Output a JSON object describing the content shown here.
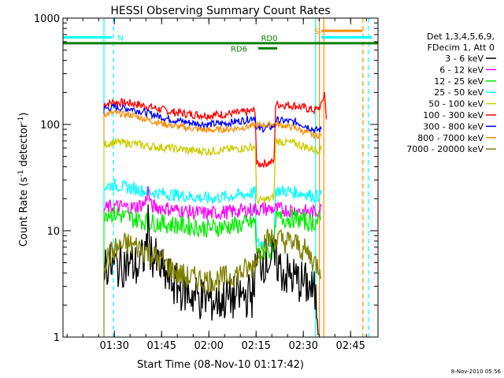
{
  "chart_data": {
    "type": "line",
    "title": "HESSI Observing Summary Count Rates",
    "xlabel": "Start Time (08-Nov-10 01:17:42)",
    "ylabel_main": "Count Rate (s",
    "ylabel_sup1": "-1",
    "ylabel_mid": " detector",
    "ylabel_sup2": "-1",
    "ylabel_end": ")",
    "yscale": "log",
    "ylim": [
      1,
      1000
    ],
    "xlim_minutes": [
      -4,
      96
    ],
    "x_ticks": [
      {
        "label": "01:30",
        "min": 12.3
      },
      {
        "label": "01:45",
        "min": 27.3
      },
      {
        "label": "02:00",
        "min": 42.3
      },
      {
        "label": "02:15",
        "min": 57.3
      },
      {
        "label": "02:30",
        "min": 72.3
      },
      {
        "label": "02:45",
        "min": 87.3
      }
    ],
    "y_ticks": [
      {
        "label": "1",
        "value": 1
      },
      {
        "label": "10",
        "value": 10
      },
      {
        "label": "100",
        "value": 100
      },
      {
        "label": "1000",
        "value": 1000
      }
    ],
    "legend": {
      "placement": "right",
      "header": [
        "Det 1,3,4,5,6,9,",
        "FDecim 1, Att 0"
      ],
      "entries": [
        {
          "label": "3 - 6 keV",
          "color": "#000000"
        },
        {
          "label": "6 - 12 keV",
          "color": "#ff00ff"
        },
        {
          "label": "12 - 25 keV",
          "color": "#00ee00"
        },
        {
          "label": "25 - 50 keV",
          "color": "#00ffff"
        },
        {
          "label": "50 - 100 keV",
          "color": "#cccc00"
        },
        {
          "label": "100 - 300 keV",
          "color": "#ff0000"
        },
        {
          "label": "300 - 800 keV",
          "color": "#0000ff"
        },
        {
          "label": "800 - 7000 keV",
          "color": "#ff8c00"
        },
        {
          "label": "7000 - 20000 keV",
          "color": "#808000"
        }
      ]
    },
    "series": [
      {
        "color": "#ff0000",
        "noise": 0.04,
        "points": [
          [
            9,
            155
          ],
          [
            12,
            162
          ],
          [
            18,
            158
          ],
          [
            24,
            145
          ],
          [
            30,
            132
          ],
          [
            36,
            125
          ],
          [
            42,
            122
          ],
          [
            48,
            125
          ],
          [
            54,
            130
          ],
          [
            57,
            135
          ],
          [
            57.5,
            42
          ],
          [
            62,
            44
          ],
          [
            63,
            45
          ],
          [
            63.5,
            155
          ],
          [
            70,
            150
          ],
          [
            74,
            140
          ],
          [
            76,
            135
          ],
          [
            78,
            150
          ],
          [
            79,
            200
          ],
          [
            79.6,
            120
          ]
        ]
      },
      {
        "color": "#0000ff",
        "noise": 0.035,
        "points": [
          [
            9,
            140
          ],
          [
            12,
            145
          ],
          [
            18,
            140
          ],
          [
            24,
            125
          ],
          [
            30,
            112
          ],
          [
            36,
            104
          ],
          [
            42,
            100
          ],
          [
            48,
            103
          ],
          [
            54,
            110
          ],
          [
            57,
            118
          ],
          [
            57.5,
            90
          ],
          [
            60,
            92
          ],
          [
            63,
            96
          ],
          [
            63.5,
            110
          ],
          [
            70,
            105
          ],
          [
            74,
            95
          ],
          [
            76,
            88
          ],
          [
            78,
            90
          ]
        ]
      },
      {
        "color": "#ff8c00",
        "noise": 0.03,
        "points": [
          [
            9,
            125
          ],
          [
            12,
            128
          ],
          [
            18,
            122
          ],
          [
            24,
            108
          ],
          [
            30,
            98
          ],
          [
            36,
            92
          ],
          [
            42,
            88
          ],
          [
            48,
            90
          ],
          [
            54,
            94
          ],
          [
            57,
            98
          ],
          [
            62,
            100
          ],
          [
            63,
            102
          ],
          [
            70,
            92
          ],
          [
            74,
            82
          ],
          [
            76,
            78
          ],
          [
            78,
            80
          ]
        ]
      },
      {
        "color": "#cccc00",
        "noise": 0.04,
        "points": [
          [
            9,
            65
          ],
          [
            12,
            68
          ],
          [
            18,
            66
          ],
          [
            24,
            62
          ],
          [
            30,
            60
          ],
          [
            36,
            57
          ],
          [
            42,
            56
          ],
          [
            48,
            58
          ],
          [
            54,
            60
          ],
          [
            57,
            62
          ],
          [
            57.5,
            19
          ],
          [
            62,
            20
          ],
          [
            63,
            21
          ],
          [
            63.5,
            70
          ],
          [
            70,
            66
          ],
          [
            74,
            60
          ],
          [
            76,
            58
          ],
          [
            78,
            58
          ]
        ]
      },
      {
        "color": "#00ffff",
        "noise": 0.06,
        "points": [
          [
            9,
            26
          ],
          [
            12,
            27
          ],
          [
            18,
            25
          ],
          [
            24,
            23
          ],
          [
            30,
            22
          ],
          [
            36,
            21
          ],
          [
            42,
            20
          ],
          [
            48,
            21
          ],
          [
            54,
            22
          ],
          [
            57,
            23
          ],
          [
            57.5,
            7.5
          ],
          [
            62,
            8
          ],
          [
            63,
            8.2
          ],
          [
            63.5,
            24
          ],
          [
            70,
            23
          ],
          [
            74,
            22
          ],
          [
            76,
            21
          ],
          [
            78,
            22
          ]
        ]
      },
      {
        "color": "#ff00ff",
        "noise": 0.07,
        "points": [
          [
            9,
            16
          ],
          [
            12,
            17
          ],
          [
            18,
            16.5
          ],
          [
            22,
            18
          ],
          [
            23,
            24
          ],
          [
            24,
            17
          ],
          [
            30,
            16
          ],
          [
            36,
            15
          ],
          [
            42,
            14.5
          ],
          [
            48,
            15
          ],
          [
            54,
            15.5
          ],
          [
            57,
            16
          ],
          [
            63,
            16
          ],
          [
            70,
            15.5
          ],
          [
            74,
            15
          ],
          [
            76,
            15
          ],
          [
            78,
            16
          ]
        ]
      },
      {
        "color": "#00ee00",
        "noise": 0.09,
        "points": [
          [
            9,
            15
          ],
          [
            12,
            14.5
          ],
          [
            18,
            13
          ],
          [
            24,
            12
          ],
          [
            30,
            11.5
          ],
          [
            36,
            11
          ],
          [
            42,
            10.5
          ],
          [
            48,
            11
          ],
          [
            54,
            11.5
          ],
          [
            57,
            12
          ],
          [
            57.5,
            6
          ],
          [
            62,
            6.5
          ],
          [
            63,
            6.5
          ],
          [
            63.5,
            13
          ],
          [
            70,
            13
          ],
          [
            74,
            12
          ],
          [
            76,
            12
          ],
          [
            78,
            12.5
          ]
        ]
      },
      {
        "color": "#000000",
        "noise": 0.22,
        "points": [
          [
            9,
            5
          ],
          [
            12,
            4.5
          ],
          [
            16,
            5
          ],
          [
            20,
            4.5
          ],
          [
            22,
            6
          ],
          [
            23,
            11
          ],
          [
            24,
            6
          ],
          [
            28,
            4
          ],
          [
            32,
            3
          ],
          [
            36,
            2.6
          ],
          [
            40,
            2.3
          ],
          [
            44,
            2.2
          ],
          [
            48,
            2.3
          ],
          [
            52,
            2.4
          ],
          [
            56,
            2.5
          ],
          [
            57.5,
            5
          ],
          [
            62,
            5.5
          ],
          [
            64,
            5
          ],
          [
            66,
            4
          ],
          [
            70,
            3.5
          ],
          [
            74,
            3
          ],
          [
            76,
            2.5
          ],
          [
            77,
            1.5
          ]
        ]
      },
      {
        "color": "#808000",
        "noise": 0.12,
        "points": [
          [
            9,
            5
          ],
          [
            12,
            6.5
          ],
          [
            16,
            7.5
          ],
          [
            20,
            7
          ],
          [
            24,
            6
          ],
          [
            28,
            5
          ],
          [
            32,
            4
          ],
          [
            36,
            3.6
          ],
          [
            42,
            3.4
          ],
          [
            48,
            3.6
          ],
          [
            52,
            4
          ],
          [
            56,
            4.5
          ],
          [
            58,
            6
          ],
          [
            60,
            8
          ],
          [
            63,
            8.5
          ],
          [
            66,
            8
          ],
          [
            70,
            7.5
          ],
          [
            74,
            6
          ],
          [
            76,
            5
          ],
          [
            78,
            4.5
          ]
        ]
      }
    ],
    "vlines": [
      {
        "min": 9.0,
        "color": "#00ffff",
        "dashed": false
      },
      {
        "min": 12.0,
        "color": "#00ffff",
        "dashed": true
      },
      {
        "min": 76.2,
        "color": "#00ffff",
        "dashed": false
      },
      {
        "min": 77.4,
        "color": "#ff8c00",
        "dashed": false
      },
      {
        "min": 78.8,
        "color": "#ff8c00",
        "dashed": false
      },
      {
        "min": 91.2,
        "color": "#ff8c00",
        "dashed": true
      },
      {
        "min": 93.0,
        "color": "#00ffff",
        "dashed": true
      }
    ],
    "bars": [
      {
        "label": "N",
        "color": "#00ffff",
        "value": 660,
        "x0": -4,
        "x1": 11.5,
        "label_min": 12.8,
        "label_side": "right"
      },
      {
        "label": "RD0",
        "color": "#008000",
        "value": 580,
        "x0": -4,
        "x1": 96,
        "label_min": 61.5,
        "label_side": "middle"
      },
      {
        "label": "RD6",
        "color": "#008000",
        "value": 520,
        "x0": 58,
        "x1": 64,
        "label_min": 55,
        "label_side": "left"
      },
      {
        "label": "S",
        "color": "#ff8c00",
        "value": 760,
        "x0": 78,
        "x1": 91,
        "label_min": 77.8,
        "label_side": "left"
      },
      {
        "label": "",
        "color": "#00ffff",
        "value": 660,
        "x0": 78,
        "x1": 94,
        "label_min": 0,
        "label_side": "none"
      }
    ],
    "stamp": "8-Nov-2010 05:56"
  }
}
